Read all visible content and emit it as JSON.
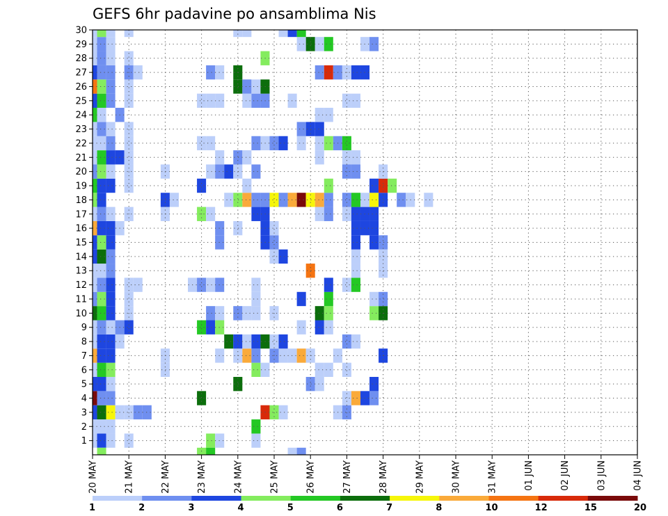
{
  "chart_data": {
    "type": "heatmap",
    "title": "GEFS 6hr padavine po ansamblima Nis",
    "xlabel": "",
    "ylabel": "",
    "ylim": [
      0,
      30
    ],
    "yticks": [
      "1",
      "2",
      "3",
      "4",
      "5",
      "6",
      "7",
      "8",
      "9",
      "10",
      "11",
      "12",
      "13",
      "14",
      "15",
      "16",
      "17",
      "18",
      "19",
      "20",
      "21",
      "22",
      "23",
      "24",
      "25",
      "26",
      "27",
      "28",
      "29",
      "30"
    ],
    "xticks": [
      "20 MAY",
      "21 MAY",
      "22 MAY",
      "23 MAY",
      "24 MAY",
      "25 MAY",
      "26 MAY",
      "27 MAY",
      "28 MAY",
      "29 MAY",
      "30 MAY",
      "31 MAY",
      "01 JUN",
      "02 JUN",
      "03 JUN",
      "04 JUN"
    ],
    "time_steps_per_day": 4,
    "grid": true,
    "legend": "bottom colorbar",
    "colorbar": {
      "labels": [
        "1",
        "2",
        "3",
        "4",
        "5",
        "6",
        "7",
        "8",
        "10",
        "12",
        "15",
        "20"
      ],
      "colors": [
        "#bccffa",
        "#6f8ff0",
        "#1e46e0",
        "#84ec5e",
        "#24c824",
        "#0c6e0c",
        "#f6f60a",
        "#faaa3a",
        "#f57412",
        "#d82a0a",
        "#7a0a0a"
      ]
    },
    "cells": [
      [
        1,
        0,
        1
      ],
      [
        1,
        1,
        3
      ],
      [
        1,
        2,
        1
      ],
      [
        1,
        4,
        1
      ],
      [
        1,
        13,
        4
      ],
      [
        1,
        14,
        1
      ],
      [
        1,
        18,
        1
      ],
      [
        2,
        0,
        1
      ],
      [
        2,
        1,
        1
      ],
      [
        2,
        2,
        1
      ],
      [
        2,
        18,
        5
      ],
      [
        3,
        0,
        3
      ],
      [
        3,
        1,
        6
      ],
      [
        3,
        2,
        7
      ],
      [
        3,
        3,
        1
      ],
      [
        3,
        4,
        1
      ],
      [
        3,
        5,
        2
      ],
      [
        3,
        6,
        2
      ],
      [
        3,
        19,
        10
      ],
      [
        3,
        20,
        4
      ],
      [
        3,
        21,
        1
      ],
      [
        3,
        27,
        1
      ],
      [
        3,
        28,
        2
      ],
      [
        4,
        0,
        11
      ],
      [
        4,
        1,
        2
      ],
      [
        4,
        2,
        2
      ],
      [
        4,
        12,
        6
      ],
      [
        4,
        28,
        1
      ],
      [
        4,
        29,
        8
      ],
      [
        4,
        30,
        3
      ],
      [
        4,
        31,
        2
      ],
      [
        5,
        0,
        3
      ],
      [
        5,
        1,
        3
      ],
      [
        5,
        2,
        1
      ],
      [
        5,
        16,
        6
      ],
      [
        5,
        24,
        2
      ],
      [
        5,
        25,
        1
      ],
      [
        5,
        31,
        3
      ],
      [
        6,
        0,
        1
      ],
      [
        6,
        1,
        5
      ],
      [
        6,
        2,
        4
      ],
      [
        6,
        8,
        1
      ],
      [
        6,
        18,
        4
      ],
      [
        6,
        19,
        1
      ],
      [
        6,
        25,
        1
      ],
      [
        6,
        26,
        1
      ],
      [
        6,
        28,
        1
      ],
      [
        7,
        0,
        8
      ],
      [
        7,
        1,
        3
      ],
      [
        7,
        2,
        3
      ],
      [
        7,
        8,
        1
      ],
      [
        7,
        14,
        1
      ],
      [
        7,
        16,
        1
      ],
      [
        7,
        17,
        8
      ],
      [
        7,
        18,
        2
      ],
      [
        7,
        20,
        2
      ],
      [
        7,
        21,
        1
      ],
      [
        7,
        22,
        1
      ],
      [
        7,
        23,
        8
      ],
      [
        7,
        24,
        1
      ],
      [
        7,
        27,
        1
      ],
      [
        7,
        32,
        3
      ],
      [
        8,
        0,
        1
      ],
      [
        8,
        1,
        3
      ],
      [
        8,
        2,
        3
      ],
      [
        8,
        3,
        1
      ],
      [
        8,
        15,
        6
      ],
      [
        8,
        16,
        3
      ],
      [
        8,
        17,
        1
      ],
      [
        8,
        18,
        3
      ],
      [
        8,
        19,
        6
      ],
      [
        8,
        20,
        1
      ],
      [
        8,
        21,
        3
      ],
      [
        8,
        28,
        2
      ],
      [
        8,
        29,
        1
      ],
      [
        9,
        0,
        1
      ],
      [
        9,
        1,
        2
      ],
      [
        9,
        2,
        1
      ],
      [
        9,
        3,
        2
      ],
      [
        9,
        4,
        3
      ],
      [
        9,
        12,
        5
      ],
      [
        9,
        13,
        3
      ],
      [
        9,
        14,
        4
      ],
      [
        9,
        23,
        1
      ],
      [
        9,
        25,
        3
      ],
      [
        9,
        26,
        1
      ],
      [
        10,
        0,
        6
      ],
      [
        10,
        1,
        5
      ],
      [
        10,
        2,
        3
      ],
      [
        10,
        4,
        1
      ],
      [
        10,
        13,
        2
      ],
      [
        10,
        14,
        1
      ],
      [
        10,
        16,
        2
      ],
      [
        10,
        17,
        1
      ],
      [
        10,
        18,
        1
      ],
      [
        10,
        20,
        1
      ],
      [
        10,
        25,
        6
      ],
      [
        10,
        26,
        4
      ],
      [
        10,
        31,
        4
      ],
      [
        10,
        32,
        6
      ],
      [
        11,
        0,
        2
      ],
      [
        11,
        1,
        4
      ],
      [
        11,
        2,
        3
      ],
      [
        11,
        4,
        1
      ],
      [
        11,
        18,
        1
      ],
      [
        11,
        23,
        3
      ],
      [
        11,
        26,
        5
      ],
      [
        11,
        31,
        1
      ],
      [
        11,
        32,
        2
      ],
      [
        12,
        0,
        1
      ],
      [
        12,
        1,
        2
      ],
      [
        12,
        2,
        3
      ],
      [
        12,
        4,
        1
      ],
      [
        12,
        5,
        1
      ],
      [
        12,
        11,
        1
      ],
      [
        12,
        12,
        2
      ],
      [
        12,
        13,
        1
      ],
      [
        12,
        14,
        2
      ],
      [
        12,
        18,
        1
      ],
      [
        12,
        26,
        3
      ],
      [
        12,
        28,
        1
      ],
      [
        12,
        29,
        5
      ],
      [
        13,
        0,
        1
      ],
      [
        13,
        1,
        1
      ],
      [
        13,
        2,
        2
      ],
      [
        13,
        24,
        9
      ],
      [
        13,
        29,
        1
      ],
      [
        13,
        32,
        1
      ],
      [
        14,
        0,
        3
      ],
      [
        14,
        1,
        6
      ],
      [
        14,
        2,
        2
      ],
      [
        14,
        20,
        1
      ],
      [
        14,
        21,
        3
      ],
      [
        14,
        29,
        1
      ],
      [
        14,
        32,
        1
      ],
      [
        15,
        0,
        3
      ],
      [
        15,
        1,
        4
      ],
      [
        15,
        2,
        3
      ],
      [
        15,
        14,
        2
      ],
      [
        15,
        19,
        3
      ],
      [
        15,
        20,
        2
      ],
      [
        15,
        29,
        3
      ],
      [
        15,
        31,
        3
      ],
      [
        15,
        32,
        2
      ],
      [
        16,
        0,
        8
      ],
      [
        16,
        1,
        3
      ],
      [
        16,
        2,
        3
      ],
      [
        16,
        3,
        1
      ],
      [
        16,
        14,
        2
      ],
      [
        16,
        16,
        1
      ],
      [
        16,
        19,
        3
      ],
      [
        16,
        20,
        1
      ],
      [
        16,
        29,
        3
      ],
      [
        16,
        30,
        3
      ],
      [
        16,
        31,
        3
      ],
      [
        17,
        0,
        1
      ],
      [
        17,
        1,
        2
      ],
      [
        17,
        2,
        1
      ],
      [
        17,
        4,
        1
      ],
      [
        17,
        8,
        1
      ],
      [
        17,
        12,
        4
      ],
      [
        17,
        13,
        1
      ],
      [
        17,
        18,
        3
      ],
      [
        17,
        19,
        3
      ],
      [
        17,
        25,
        1
      ],
      [
        17,
        26,
        2
      ],
      [
        17,
        28,
        1
      ],
      [
        17,
        29,
        3
      ],
      [
        17,
        30,
        3
      ],
      [
        17,
        31,
        3
      ],
      [
        18,
        0,
        4
      ],
      [
        18,
        1,
        3
      ],
      [
        18,
        8,
        3
      ],
      [
        18,
        9,
        1
      ],
      [
        18,
        15,
        1
      ],
      [
        18,
        16,
        4
      ],
      [
        18,
        17,
        8
      ],
      [
        18,
        18,
        2
      ],
      [
        18,
        19,
        2
      ],
      [
        18,
        20,
        7
      ],
      [
        18,
        21,
        2
      ],
      [
        18,
        22,
        8
      ],
      [
        18,
        23,
        11
      ],
      [
        18,
        24,
        7
      ],
      [
        18,
        25,
        8
      ],
      [
        18,
        26,
        2
      ],
      [
        18,
        28,
        2
      ],
      [
        18,
        29,
        5
      ],
      [
        18,
        30,
        1
      ],
      [
        18,
        31,
        7
      ],
      [
        18,
        32,
        3
      ],
      [
        18,
        34,
        2
      ],
      [
        18,
        35,
        1
      ],
      [
        18,
        37,
        1
      ],
      [
        19,
        0,
        5
      ],
      [
        19,
        1,
        3
      ],
      [
        19,
        2,
        3
      ],
      [
        19,
        4,
        1
      ],
      [
        19,
        12,
        3
      ],
      [
        19,
        17,
        1
      ],
      [
        19,
        26,
        4
      ],
      [
        19,
        31,
        3
      ],
      [
        19,
        32,
        10
      ],
      [
        19,
        33,
        4
      ],
      [
        20,
        0,
        2
      ],
      [
        20,
        1,
        4
      ],
      [
        20,
        2,
        1
      ],
      [
        20,
        4,
        1
      ],
      [
        20,
        8,
        1
      ],
      [
        20,
        13,
        1
      ],
      [
        20,
        14,
        2
      ],
      [
        20,
        15,
        3
      ],
      [
        20,
        16,
        1
      ],
      [
        20,
        18,
        2
      ],
      [
        20,
        28,
        2
      ],
      [
        20,
        29,
        2
      ],
      [
        20,
        32,
        1
      ],
      [
        21,
        0,
        1
      ],
      [
        21,
        1,
        5
      ],
      [
        21,
        2,
        3
      ],
      [
        21,
        3,
        3
      ],
      [
        21,
        4,
        1
      ],
      [
        21,
        14,
        1
      ],
      [
        21,
        16,
        2
      ],
      [
        21,
        17,
        1
      ],
      [
        21,
        25,
        1
      ],
      [
        21,
        28,
        1
      ],
      [
        21,
        29,
        1
      ],
      [
        22,
        0,
        1
      ],
      [
        22,
        1,
        1
      ],
      [
        22,
        2,
        2
      ],
      [
        22,
        4,
        1
      ],
      [
        22,
        12,
        1
      ],
      [
        22,
        13,
        1
      ],
      [
        22,
        18,
        2
      ],
      [
        22,
        19,
        1
      ],
      [
        22,
        20,
        2
      ],
      [
        22,
        21,
        3
      ],
      [
        22,
        23,
        1
      ],
      [
        22,
        25,
        1
      ],
      [
        22,
        26,
        4
      ],
      [
        22,
        27,
        2
      ],
      [
        22,
        28,
        5
      ],
      [
        23,
        0,
        1
      ],
      [
        23,
        1,
        2
      ],
      [
        23,
        2,
        1
      ],
      [
        23,
        4,
        1
      ],
      [
        23,
        23,
        2
      ],
      [
        23,
        24,
        3
      ],
      [
        23,
        25,
        3
      ],
      [
        24,
        0,
        5
      ],
      [
        24,
        1,
        1
      ],
      [
        24,
        3,
        2
      ],
      [
        24,
        25,
        1
      ],
      [
        24,
        26,
        1
      ],
      [
        25,
        0,
        3
      ],
      [
        25,
        1,
        5
      ],
      [
        25,
        2,
        2
      ],
      [
        25,
        4,
        1
      ],
      [
        25,
        12,
        1
      ],
      [
        25,
        13,
        1
      ],
      [
        25,
        14,
        1
      ],
      [
        25,
        17,
        1
      ],
      [
        25,
        18,
        2
      ],
      [
        25,
        19,
        2
      ],
      [
        25,
        22,
        1
      ],
      [
        25,
        28,
        1
      ],
      [
        25,
        29,
        1
      ],
      [
        26,
        0,
        9
      ],
      [
        26,
        1,
        4
      ],
      [
        26,
        2,
        2
      ],
      [
        26,
        4,
        1
      ],
      [
        26,
        16,
        6
      ],
      [
        26,
        17,
        2
      ],
      [
        26,
        18,
        1
      ],
      [
        26,
        19,
        6
      ],
      [
        27,
        0,
        3
      ],
      [
        27,
        1,
        2
      ],
      [
        27,
        2,
        2
      ],
      [
        27,
        4,
        2
      ],
      [
        27,
        5,
        1
      ],
      [
        27,
        13,
        2
      ],
      [
        27,
        14,
        1
      ],
      [
        27,
        16,
        6
      ],
      [
        27,
        25,
        2
      ],
      [
        27,
        26,
        10
      ],
      [
        27,
        27,
        2
      ],
      [
        27,
        28,
        1
      ],
      [
        27,
        29,
        3
      ],
      [
        27,
        30,
        3
      ],
      [
        28,
        0,
        1
      ],
      [
        28,
        1,
        2
      ],
      [
        28,
        2,
        1
      ],
      [
        28,
        4,
        1
      ],
      [
        28,
        19,
        4
      ],
      [
        29,
        0,
        1
      ],
      [
        29,
        1,
        2
      ],
      [
        29,
        2,
        1
      ],
      [
        29,
        23,
        1
      ],
      [
        29,
        24,
        6
      ],
      [
        29,
        25,
        1
      ],
      [
        29,
        26,
        5
      ],
      [
        29,
        30,
        1
      ],
      [
        29,
        31,
        2
      ],
      [
        30,
        0,
        1
      ],
      [
        30,
        1,
        4
      ],
      [
        30,
        2,
        1
      ],
      [
        30,
        4,
        1
      ],
      [
        30,
        16,
        1
      ],
      [
        30,
        17,
        1
      ],
      [
        30,
        21,
        1
      ],
      [
        30,
        22,
        3
      ],
      [
        30,
        23,
        5
      ],
      [
        0,
        1,
        4
      ],
      [
        0,
        12,
        4
      ],
      [
        0,
        13,
        5
      ],
      [
        0,
        22,
        1
      ],
      [
        0,
        23,
        2
      ]
    ]
  }
}
